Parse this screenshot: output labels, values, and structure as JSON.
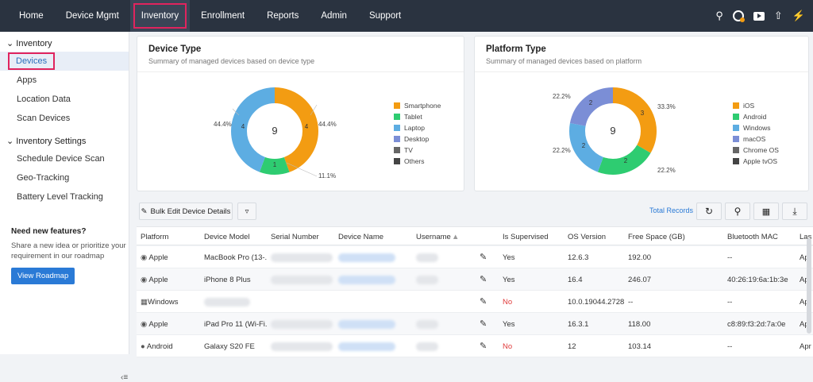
{
  "topnav": {
    "items": [
      "Home",
      "Device Mgmt",
      "Inventory",
      "Enrollment",
      "Reports",
      "Admin",
      "Support"
    ],
    "active": "Inventory"
  },
  "sidebar": {
    "group1": "Inventory",
    "group1_items": [
      "Devices",
      "Apps",
      "Location Data",
      "Scan Devices"
    ],
    "group2": "Inventory Settings",
    "group2_items": [
      "Schedule Device Scan",
      "Geo-Tracking",
      "Battery Level Tracking"
    ],
    "promo_title": "Need new features?",
    "promo_text": "Share a new idea or prioritize your requirement in our roadmap",
    "promo_button": "View Roadmap"
  },
  "device_type": {
    "title": "Device Type",
    "subtitle": "Summary of managed devices based on device type",
    "center": "9",
    "segments": [
      {
        "label": "Smartphone",
        "value": 4,
        "pct": "44.4%",
        "color": "#f39c12"
      },
      {
        "label": "Tablet",
        "value": 1,
        "pct": "11.1%",
        "color": "#2ecc71"
      },
      {
        "label": "Laptop",
        "value": 4,
        "pct": "44.4%",
        "color": "#5dade2"
      }
    ],
    "legend": [
      {
        "label": "Smartphone",
        "color": "#f39c12"
      },
      {
        "label": "Tablet",
        "color": "#2ecc71"
      },
      {
        "label": "Laptop",
        "color": "#5dade2"
      },
      {
        "label": "Desktop",
        "color": "#7b8ed6"
      },
      {
        "label": "TV",
        "color": "#666666"
      },
      {
        "label": "Others",
        "color": "#444444"
      }
    ]
  },
  "platform_type": {
    "title": "Platform Type",
    "subtitle": "Summary of managed devices based on platform",
    "center": "9",
    "segments": [
      {
        "label": "iOS",
        "value": 3,
        "pct": "33.3%",
        "color": "#f39c12"
      },
      {
        "label": "Android",
        "value": 2,
        "pct": "22.2%",
        "color": "#2ecc71"
      },
      {
        "label": "Windows",
        "value": 2,
        "pct": "22.2%",
        "color": "#5dade2"
      },
      {
        "label": "macOS",
        "value": 2,
        "pct": "22.2%",
        "color": "#7b8ed6"
      }
    ],
    "legend": [
      {
        "label": "iOS",
        "color": "#f39c12"
      },
      {
        "label": "Android",
        "color": "#2ecc71"
      },
      {
        "label": "Windows",
        "color": "#5dade2"
      },
      {
        "label": "macOS",
        "color": "#7b8ed6"
      },
      {
        "label": "Chrome OS",
        "color": "#666666"
      },
      {
        "label": "Apple tvOS",
        "color": "#444444"
      }
    ]
  },
  "toolbar": {
    "bulk_edit": "Bulk Edit Device Details",
    "total_records": "Total Records"
  },
  "table": {
    "columns": [
      "Platform",
      "Device Model",
      "Serial Number",
      "Device Name",
      "Username",
      "Is Supervised",
      "OS Version",
      "Free Space (GB)",
      "Bluetooth MAC",
      "Las"
    ],
    "rows": [
      {
        "platform": "Apple",
        "model": "MacBook Pro (13-...",
        "supervised": "Yes",
        "os": "12.6.3",
        "free": "192.00",
        "bt": "--",
        "last": "Apr"
      },
      {
        "platform": "Apple",
        "model": "iPhone 8 Plus",
        "supervised": "Yes",
        "os": "16.4",
        "free": "246.07",
        "bt": "40:26:19:6a:1b:3e",
        "last": "Apr"
      },
      {
        "platform": "Windows",
        "model": "",
        "supervised": "No",
        "os": "10.0.19044.2728",
        "free": "--",
        "bt": "--",
        "last": "Apr"
      },
      {
        "platform": "Apple",
        "model": "iPad Pro 11 (Wi-Fi...",
        "supervised": "Yes",
        "os": "16.3.1",
        "free": "118.00",
        "bt": "c8:89:f3:2d:7a:0e",
        "last": "Apr"
      },
      {
        "platform": "Android",
        "model": "Galaxy S20 FE",
        "supervised": "No",
        "os": "12",
        "free": "103.14",
        "bt": "--",
        "last": "Apr"
      }
    ]
  },
  "colors": {
    "accent": "#2a7ad6",
    "no": "#e03b3b",
    "nav_bg": "#2a3340"
  }
}
